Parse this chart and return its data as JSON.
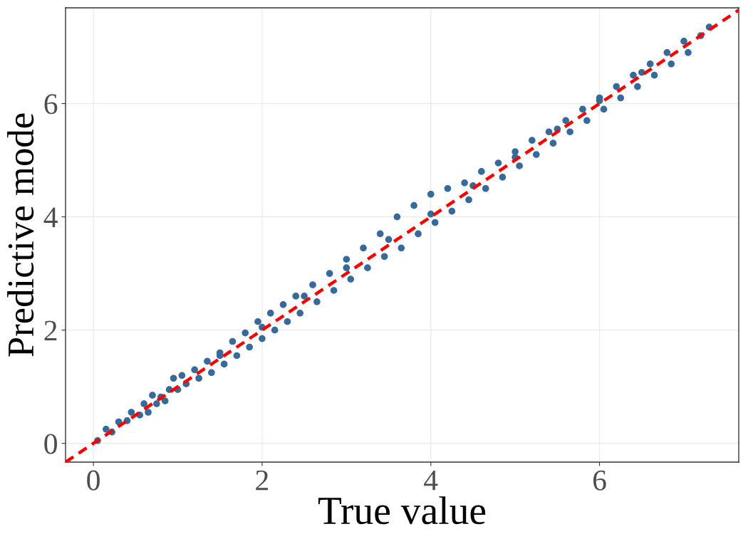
{
  "chart_data": {
    "type": "scatter",
    "xlabel": "True value",
    "ylabel": "Predictive mode",
    "xlim": [
      -0.33,
      7.65
    ],
    "ylim": [
      -0.33,
      7.69
    ],
    "xticks": [
      0,
      2,
      4,
      6
    ],
    "yticks": [
      0,
      2,
      4,
      6
    ],
    "grid": true,
    "series": [
      {
        "marker": "circle",
        "color": "#356a9a",
        "x": [
          0.05,
          0.15,
          0.22,
          0.3,
          0.4,
          0.45,
          0.55,
          0.6,
          0.65,
          0.7,
          0.75,
          0.8,
          0.85,
          0.9,
          0.95,
          1.0,
          1.05,
          1.1,
          1.2,
          1.25,
          1.35,
          1.4,
          1.5,
          1.55,
          1.65,
          1.7,
          1.8,
          1.85,
          1.95,
          2.0,
          2.1,
          2.15,
          2.25,
          2.3,
          2.4,
          2.45,
          2.6,
          2.65,
          2.8,
          2.85,
          3.0,
          3.05,
          3.2,
          3.25,
          3.4,
          3.45,
          3.6,
          3.65,
          3.8,
          3.85,
          4.0,
          4.05,
          4.2,
          4.25,
          4.4,
          4.45,
          4.6,
          4.65,
          4.8,
          4.85,
          5.0,
          5.05,
          5.2,
          5.25,
          5.4,
          5.45,
          5.6,
          5.65,
          5.8,
          5.85,
          6.0,
          6.05,
          6.2,
          6.25,
          6.4,
          6.45,
          6.6,
          6.65,
          6.8,
          6.85,
          7.0,
          7.05,
          7.2,
          7.3,
          1.5,
          2.0,
          2.5,
          3.0,
          3.5,
          4.0,
          4.5,
          5.0,
          5.5,
          6.0,
          6.5
        ],
        "values": [
          0.05,
          0.25,
          0.2,
          0.38,
          0.4,
          0.55,
          0.5,
          0.7,
          0.55,
          0.85,
          0.7,
          0.82,
          0.75,
          0.95,
          1.15,
          0.95,
          1.2,
          1.05,
          1.3,
          1.15,
          1.45,
          1.25,
          1.6,
          1.4,
          1.8,
          1.55,
          1.95,
          1.7,
          2.15,
          1.85,
          2.3,
          2.0,
          2.45,
          2.15,
          2.6,
          2.3,
          2.8,
          2.5,
          3.0,
          2.7,
          3.25,
          2.9,
          3.45,
          3.1,
          3.7,
          3.3,
          4.0,
          3.45,
          4.2,
          3.7,
          4.4,
          3.9,
          4.5,
          4.1,
          4.6,
          4.3,
          4.8,
          4.5,
          4.95,
          4.7,
          5.15,
          4.9,
          5.35,
          5.1,
          5.5,
          5.3,
          5.7,
          5.5,
          5.9,
          5.7,
          6.1,
          5.9,
          6.3,
          6.1,
          6.5,
          6.3,
          6.7,
          6.5,
          6.9,
          6.7,
          7.1,
          6.9,
          7.2,
          7.35,
          1.55,
          2.05,
          2.6,
          3.1,
          3.6,
          4.05,
          4.55,
          5.05,
          5.55,
          6.05,
          6.55
        ]
      },
      {
        "type": "line",
        "color": "#ff0000",
        "line_style": "dashed",
        "x": [
          -0.33,
          7.65
        ],
        "values": [
          -0.33,
          7.65
        ]
      }
    ]
  }
}
